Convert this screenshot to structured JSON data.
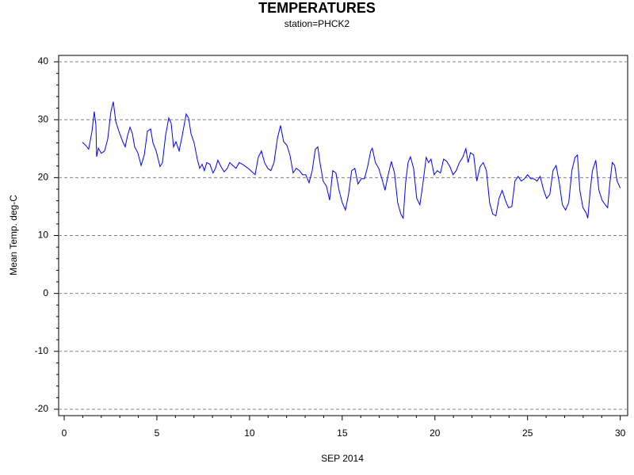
{
  "chart_data": {
    "type": "line",
    "title": "TEMPERATURES",
    "subtitle": "station=PHCK2",
    "x_label": "SEP 2014",
    "y_label": "Mean Temp. deg-C",
    "xlim": [
      -0.3,
      30.4
    ],
    "ylim": [
      -21.1,
      41.1
    ],
    "xticks": [
      0,
      5,
      10,
      15,
      20,
      25,
      30
    ],
    "yticks": [
      -20,
      -10,
      0,
      10,
      20,
      30,
      40
    ],
    "xminorticks": [
      1,
      2,
      3,
      4,
      6,
      7,
      8,
      9,
      11,
      12,
      13,
      14,
      16,
      17,
      18,
      19,
      21,
      22,
      23,
      24,
      26,
      27,
      28,
      29
    ],
    "yminorticks": [
      -18,
      -16,
      -14,
      -12,
      -8,
      -6,
      -4,
      -2,
      2,
      4,
      6,
      8,
      12,
      14,
      16,
      18,
      22,
      24,
      26,
      28,
      32,
      34,
      36,
      38
    ],
    "grid": true,
    "series": [
      {
        "color": "#0000ff",
        "x": [
          0.98,
          1.15,
          1.32,
          1.5,
          1.62,
          1.71,
          1.75,
          1.84,
          2.0,
          2.18,
          2.35,
          2.52,
          2.65,
          2.78,
          2.95,
          3.16,
          3.29,
          3.42,
          3.55,
          3.68,
          3.8,
          3.97,
          4.15,
          4.32,
          4.49,
          4.66,
          4.79,
          4.96,
          5.17,
          5.3,
          5.47,
          5.64,
          5.77,
          5.9,
          6.03,
          6.2,
          6.37,
          6.58,
          6.71,
          6.84,
          7.01,
          7.18,
          7.31,
          7.44,
          7.56,
          7.69,
          7.86,
          8.03,
          8.16,
          8.29,
          8.46,
          8.63,
          8.8,
          8.93,
          9.1,
          9.27,
          9.44,
          9.62,
          9.79,
          9.96,
          10.13,
          10.3,
          10.47,
          10.64,
          10.81,
          10.98,
          11.15,
          11.32,
          11.5,
          11.67,
          11.84,
          12.01,
          12.18,
          12.35,
          12.52,
          12.69,
          12.86,
          13.03,
          13.21,
          13.38,
          13.55,
          13.68,
          13.8,
          13.97,
          14.15,
          14.32,
          14.49,
          14.66,
          14.83,
          15.0,
          15.17,
          15.34,
          15.51,
          15.68,
          15.85,
          16.03,
          16.2,
          16.37,
          16.54,
          16.62,
          16.79,
          16.97,
          17.14,
          17.31,
          17.48,
          17.65,
          17.82,
          17.99,
          18.16,
          18.29,
          18.42,
          18.55,
          18.68,
          18.85,
          19.02,
          19.19,
          19.36,
          19.53,
          19.66,
          19.79,
          19.96,
          20.13,
          20.3,
          20.47,
          20.64,
          20.81,
          20.98,
          21.15,
          21.32,
          21.5,
          21.67,
          21.79,
          21.92,
          22.09,
          22.26,
          22.44,
          22.61,
          22.78,
          22.95,
          23.12,
          23.29,
          23.46,
          23.63,
          23.8,
          23.97,
          24.15,
          24.32,
          24.49,
          24.66,
          24.83,
          25.0,
          25.17,
          25.34,
          25.51,
          25.68,
          25.85,
          26.03,
          26.2,
          26.37,
          26.54,
          26.71,
          26.88,
          27.05,
          27.22,
          27.39,
          27.56,
          27.69,
          27.82,
          27.99,
          28.16,
          28.25,
          28.38,
          28.5,
          28.68,
          28.85,
          29.02,
          29.19,
          29.32,
          29.44,
          29.57,
          29.7,
          29.83,
          30.0
        ],
        "values": [
          26.1,
          25.6,
          24.9,
          28.0,
          31.4,
          29.1,
          23.6,
          25.1,
          24.2,
          24.6,
          26.7,
          31.4,
          33.1,
          29.7,
          28.0,
          26.2,
          25.3,
          27.3,
          28.7,
          27.6,
          25.3,
          24.3,
          22.1,
          23.9,
          28.0,
          28.4,
          26.0,
          24.6,
          21.9,
          22.6,
          27.3,
          30.3,
          29.4,
          25.3,
          26.2,
          24.6,
          27.3,
          31.0,
          30.3,
          27.6,
          26.0,
          23.2,
          21.6,
          22.3,
          21.2,
          22.6,
          22.3,
          20.8,
          21.6,
          23.0,
          21.9,
          21.0,
          21.6,
          22.6,
          22.1,
          21.6,
          22.6,
          22.3,
          21.9,
          21.5,
          21.0,
          20.5,
          23.5,
          24.6,
          22.6,
          21.6,
          21.2,
          22.6,
          26.7,
          29.0,
          26.2,
          25.6,
          23.9,
          20.8,
          21.6,
          21.2,
          20.5,
          20.5,
          19.1,
          21.2,
          24.9,
          25.3,
          22.6,
          19.4,
          18.5,
          16.1,
          21.2,
          20.8,
          17.8,
          15.7,
          14.4,
          17.1,
          21.2,
          21.6,
          18.9,
          19.8,
          19.8,
          21.9,
          24.6,
          25.1,
          22.6,
          21.6,
          19.8,
          17.8,
          20.5,
          22.8,
          20.8,
          15.7,
          13.7,
          13.0,
          19.1,
          22.6,
          23.6,
          21.6,
          16.4,
          15.3,
          19.1,
          23.5,
          22.6,
          23.2,
          20.5,
          21.2,
          20.8,
          23.2,
          22.8,
          21.9,
          20.5,
          21.2,
          22.6,
          23.5,
          25.0,
          22.6,
          24.3,
          23.9,
          19.4,
          21.9,
          22.6,
          21.2,
          15.7,
          13.7,
          13.4,
          16.4,
          17.8,
          16.1,
          14.8,
          15.0,
          19.4,
          20.2,
          19.4,
          19.8,
          20.5,
          19.8,
          19.8,
          19.4,
          20.2,
          18.0,
          16.4,
          17.1,
          21.2,
          22.1,
          19.1,
          15.3,
          14.4,
          15.7,
          21.2,
          23.5,
          23.9,
          17.8,
          14.8,
          13.9,
          13.0,
          17.8,
          21.2,
          23.0,
          17.8,
          16.1,
          15.3,
          14.8,
          19.1,
          22.6,
          22.1,
          19.4,
          18.2
        ]
      }
    ]
  }
}
